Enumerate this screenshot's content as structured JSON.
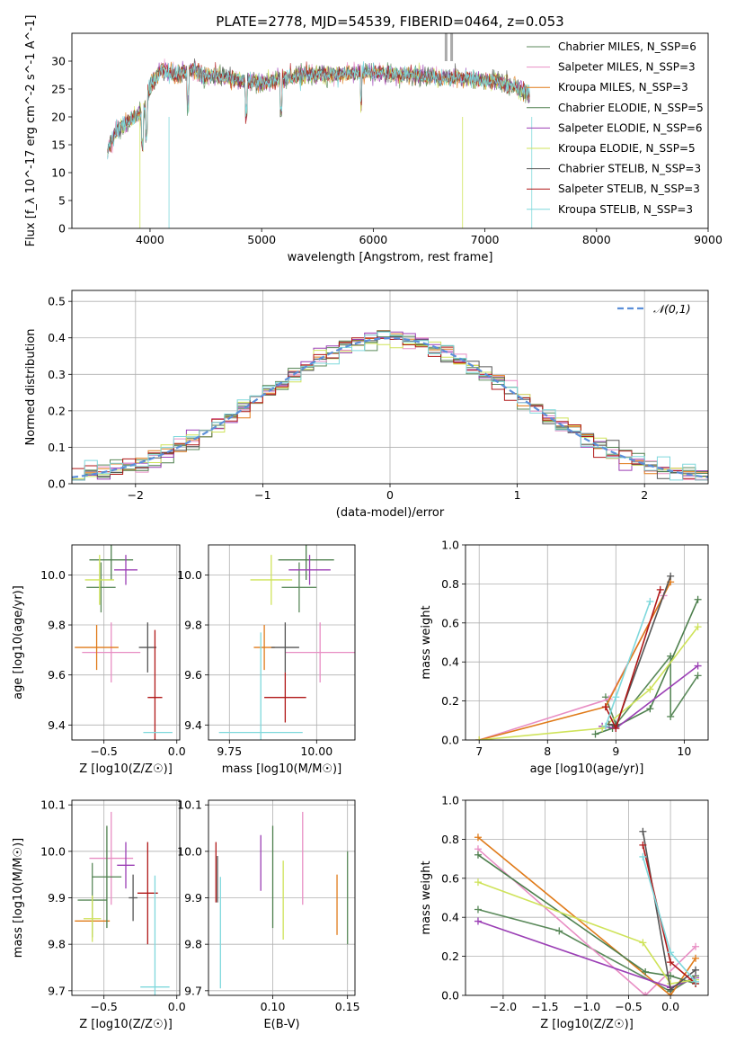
{
  "figure": {
    "title": "PLATE=2778, MJD=54539, FIBERID=0464, z=0.053"
  },
  "series_legend": {
    "names": [
      "Chabrier MILES, N_SSP=6",
      "Salpeter MILES, N_SSP=3",
      "Kroupa MILES, N_SSP=3",
      "Chabrier ELODIE, N_SSP=5",
      "Salpeter ELODIE, N_SSP=6",
      "Kroupa ELODIE, N_SSP=5",
      "Chabrier STELIB, N_SSP=3",
      "Salpeter STELIB, N_SSP=3",
      "Kroupa STELIB, N_SSP=3"
    ],
    "colors": [
      "#5b8a5b",
      "#e88ec4",
      "#e07b1a",
      "#4d7f4d",
      "#9b3fb5",
      "#cfe35a",
      "#555555",
      "#b01818",
      "#7fd8dc"
    ]
  },
  "chart_data": [
    {
      "id": "spectrum",
      "type": "line",
      "xlabel": "wavelength [Angstrom, rest frame]",
      "ylabel": "Flux [f_λ 10^-17 erg cm^-2 s^-1 A^-1]",
      "xlim": [
        3300,
        9000
      ],
      "ylim": [
        0,
        35
      ],
      "xticks": [
        4000,
        5000,
        6000,
        7000,
        8000,
        9000
      ],
      "yticks": [
        0,
        5,
        10,
        15,
        20,
        25,
        30
      ],
      "grid": false,
      "legend_position": "top-right",
      "x": [
        3620,
        3700,
        3800,
        3900,
        3950,
        4000,
        4100,
        4200,
        4300,
        4400,
        4500,
        4600,
        4700,
        4800,
        4900,
        5000,
        5200,
        5400,
        5600,
        5800,
        6000,
        6200,
        6400,
        6600,
        6800,
        7000,
        7200,
        7400
      ],
      "flux": [
        14.0,
        17.5,
        19.0,
        20.5,
        21.5,
        25.5,
        28.5,
        27.5,
        28.0,
        28.5,
        27.0,
        27.5,
        27.0,
        26.5,
        26.5,
        26.0,
        27.0,
        27.5,
        27.5,
        28.0,
        28.0,
        27.5,
        27.5,
        27.0,
        27.0,
        26.5,
        26.0,
        24.0
      ]
    },
    {
      "id": "residuals",
      "type": "histogram",
      "xlabel": "(data-model)/error",
      "ylabel": "Normed distribution",
      "xlim": [
        -2.5,
        2.5
      ],
      "ylim": [
        0,
        0.53
      ],
      "xticks": [
        -2,
        -1,
        0,
        1,
        2
      ],
      "yticks": [
        0.0,
        0.1,
        0.2,
        0.3,
        0.4,
        0.5
      ],
      "grid": true,
      "legend_position": "top-right",
      "legend": [
        "𝒩(0,1)"
      ],
      "bin_width": 0.1
    },
    {
      "id": "age_vs_Z",
      "type": "errorbar",
      "xlabel": "Z [log10(Z/Z☉)]",
      "ylabel": "age [log10(age/yr)]",
      "xlim": [
        -0.72,
        0.02
      ],
      "ylim": [
        9.34,
        10.12
      ],
      "xticks": [
        -0.5,
        0.0
      ],
      "yticks": [
        9.4,
        9.6,
        9.8,
        10.0
      ],
      "grid": true,
      "points": [
        {
          "x": -0.52,
          "xerr": 0.1,
          "y": 9.95,
          "yerr": 0.1,
          "c": 0
        },
        {
          "x": -0.45,
          "xerr": 0.2,
          "y": 9.69,
          "yerr": 0.12,
          "c": 1
        },
        {
          "x": -0.55,
          "xerr": 0.15,
          "y": 9.71,
          "yerr": 0.09,
          "c": 2
        },
        {
          "x": -0.45,
          "xerr": 0.15,
          "y": 10.06,
          "yerr": 0.08,
          "c": 3
        },
        {
          "x": -0.35,
          "xerr": 0.08,
          "y": 10.02,
          "yerr": 0.06,
          "c": 4
        },
        {
          "x": -0.53,
          "xerr": 0.1,
          "y": 9.98,
          "yerr": 0.1,
          "c": 5
        },
        {
          "x": -0.2,
          "xerr": 0.06,
          "y": 9.71,
          "yerr": 0.1,
          "c": 6
        },
        {
          "x": -0.15,
          "xerr": 0.05,
          "y": 9.51,
          "yerr": 0.27,
          "c": 7
        },
        {
          "x": -0.13,
          "xerr": 0.1,
          "y": 9.37,
          "yerr": 0.0,
          "c": 8
        }
      ]
    },
    {
      "id": "age_vs_mass",
      "type": "errorbar",
      "xlabel": "mass [log10(M/M☉)]",
      "ylabel": "",
      "xlim": [
        9.69,
        10.11
      ],
      "ylim": [
        9.34,
        10.12
      ],
      "xticks": [
        9.75,
        10.0
      ],
      "yticks": [
        9.4,
        9.6,
        9.8,
        10.0
      ],
      "grid": true,
      "points": [
        {
          "x": 9.95,
          "xerr": 0.05,
          "y": 9.95,
          "yerr": 0.1,
          "c": 0
        },
        {
          "x": 10.01,
          "xerr": 0.1,
          "y": 9.69,
          "yerr": 0.12,
          "c": 1
        },
        {
          "x": 9.85,
          "xerr": 0.03,
          "y": 9.71,
          "yerr": 0.09,
          "c": 2
        },
        {
          "x": 9.97,
          "xerr": 0.08,
          "y": 10.06,
          "yerr": 0.08,
          "c": 3
        },
        {
          "x": 9.98,
          "xerr": 0.06,
          "y": 10.02,
          "yerr": 0.06,
          "c": 4
        },
        {
          "x": 9.87,
          "xerr": 0.06,
          "y": 9.98,
          "yerr": 0.1,
          "c": 5
        },
        {
          "x": 9.91,
          "xerr": 0.04,
          "y": 9.71,
          "yerr": 0.1,
          "c": 6
        },
        {
          "x": 9.91,
          "xerr": 0.06,
          "y": 9.51,
          "yerr": 0.1,
          "c": 7
        },
        {
          "x": 9.84,
          "xerr": 0.12,
          "y": 9.37,
          "yerr": 0.4,
          "c": 8
        }
      ]
    },
    {
      "id": "massweight_vs_age",
      "type": "line",
      "xlabel": "age [log10(age/yr)]",
      "ylabel": "mass weight",
      "xlim": [
        6.8,
        10.35
      ],
      "ylim": [
        0,
        1.0
      ],
      "xticks": [
        7,
        8,
        9,
        10
      ],
      "yticks": [
        0.0,
        0.2,
        0.4,
        0.6,
        0.8,
        1.0
      ],
      "grid": true,
      "series": [
        {
          "c": 0,
          "x": [
            8.85,
            9.0,
            9.8,
            9.8,
            10.2
          ],
          "y": [
            0.22,
            0.08,
            0.43,
            0.12,
            0.33
          ]
        },
        {
          "c": 1,
          "x": [
            7.0,
            8.9,
            9.7
          ],
          "y": [
            0.0,
            0.21,
            0.74
          ]
        },
        {
          "c": 2,
          "x": [
            7.0,
            8.85,
            9.8
          ],
          "y": [
            0.0,
            0.17,
            0.81
          ]
        },
        {
          "c": 3,
          "x": [
            8.7,
            8.95,
            9.5,
            10.2
          ],
          "y": [
            0.03,
            0.06,
            0.16,
            0.72
          ]
        },
        {
          "c": 4,
          "x": [
            8.8,
            9.0,
            10.2
          ],
          "y": [
            0.07,
            0.06,
            0.38
          ]
        },
        {
          "c": 5,
          "x": [
            7.0,
            8.8,
            9.5,
            10.2
          ],
          "y": [
            0.0,
            0.06,
            0.26,
            0.58
          ]
        },
        {
          "c": 6,
          "x": [
            8.9,
            9.0,
            9.8
          ],
          "y": [
            0.08,
            0.07,
            0.84
          ]
        },
        {
          "c": 7,
          "x": [
            8.85,
            9.0,
            9.65
          ],
          "y": [
            0.17,
            0.06,
            0.77
          ]
        },
        {
          "c": 8,
          "x": [
            8.85,
            9.0,
            9.5
          ],
          "y": [
            0.07,
            0.22,
            0.71
          ]
        }
      ]
    },
    {
      "id": "mass_vs_Z",
      "type": "errorbar",
      "xlabel": "Z [log10(Z/Z☉)]",
      "ylabel": "mass [log10(M/M☉)]",
      "xlim": [
        -0.72,
        0.02
      ],
      "ylim": [
        9.69,
        10.11
      ],
      "xticks": [
        -0.5,
        0.0
      ],
      "yticks": [
        9.7,
        9.8,
        9.9,
        10.0,
        10.1
      ],
      "grid": true,
      "points": [
        {
          "x": -0.58,
          "xerr": 0.1,
          "y": 9.895,
          "yerr": 0.08,
          "c": 0
        },
        {
          "x": -0.45,
          "xerr": 0.15,
          "y": 9.985,
          "yerr": 0.1,
          "c": 1
        },
        {
          "x": -0.58,
          "xerr": 0.12,
          "y": 9.85,
          "yerr": 0.0,
          "c": 2
        },
        {
          "x": -0.48,
          "xerr": 0.1,
          "y": 9.945,
          "yerr": 0.11,
          "c": 3
        },
        {
          "x": -0.35,
          "xerr": 0.06,
          "y": 9.97,
          "yerr": 0.05,
          "c": 4
        },
        {
          "x": -0.58,
          "xerr": 0.06,
          "y": 9.855,
          "yerr": 0.05,
          "c": 5
        },
        {
          "x": -0.3,
          "xerr": 0.03,
          "y": 9.9,
          "yerr": 0.05,
          "c": 6
        },
        {
          "x": -0.2,
          "xerr": 0.07,
          "y": 9.91,
          "yerr": 0.11,
          "c": 7
        },
        {
          "x": -0.15,
          "xerr": 0.1,
          "y": 9.708,
          "yerr": 0.24,
          "c": 8
        }
      ]
    },
    {
      "id": "mass_vs_EBV",
      "type": "errorbar",
      "xlabel": "E(B-V)",
      "ylabel": "",
      "xlim": [
        0.057,
        0.155
      ],
      "ylim": [
        9.69,
        10.11
      ],
      "xticks": [
        0.1,
        0.15
      ],
      "yticks": [
        9.7,
        9.8,
        9.9,
        10.0,
        10.1
      ],
      "grid": true,
      "points": [
        {
          "x": 0.15,
          "y": 9.9,
          "yerr": 0.1,
          "c": 0
        },
        {
          "x": 0.12,
          "y": 9.985,
          "yerr": 0.1,
          "c": 1
        },
        {
          "x": 0.143,
          "y": 9.885,
          "yerr": 0.065,
          "c": 2
        },
        {
          "x": 0.1,
          "y": 9.945,
          "yerr": 0.11,
          "c": 3
        },
        {
          "x": 0.092,
          "y": 9.975,
          "yerr": 0.06,
          "c": 4
        },
        {
          "x": 0.107,
          "y": 9.895,
          "yerr": 0.085,
          "c": 5
        },
        {
          "x": 0.063,
          "y": 9.94,
          "yerr": 0.05,
          "c": 6
        },
        {
          "x": 0.062,
          "y": 9.955,
          "yerr": 0.065,
          "c": 7
        },
        {
          "x": 0.065,
          "y": 9.825,
          "yerr": 0.12,
          "c": 8
        }
      ]
    },
    {
      "id": "massweight_vs_Z",
      "type": "line",
      "xlabel": "Z [log10(Z/Z☉)]",
      "ylabel": "mass weight",
      "xlim": [
        -2.45,
        0.45
      ],
      "ylim": [
        0,
        1.0
      ],
      "xticks": [
        -2.0,
        -1.5,
        -1.0,
        -0.5,
        0.0
      ],
      "yticks": [
        0.0,
        0.2,
        0.4,
        0.6,
        0.8,
        1.0
      ],
      "grid": true,
      "series": [
        {
          "c": 0,
          "x": [
            -2.3,
            -1.33,
            0.0,
            0.3
          ],
          "y": [
            0.44,
            0.33,
            0.02,
            0.1
          ]
        },
        {
          "c": 1,
          "x": [
            -2.3,
            -0.3,
            0.3
          ],
          "y": [
            0.75,
            0.0,
            0.25
          ]
        },
        {
          "c": 2,
          "x": [
            -2.3,
            0.0,
            0.3
          ],
          "y": [
            0.81,
            0.0,
            0.19
          ]
        },
        {
          "c": 3,
          "x": [
            -2.3,
            -0.3,
            0.0,
            0.3
          ],
          "y": [
            0.72,
            0.12,
            0.1,
            0.06
          ]
        },
        {
          "c": 4,
          "x": [
            -2.3,
            0.0,
            0.3
          ],
          "y": [
            0.38,
            0.04,
            0.09
          ]
        },
        {
          "c": 5,
          "x": [
            -2.3,
            -0.33,
            0.0,
            0.3
          ],
          "y": [
            0.58,
            0.27,
            0.06,
            0.08
          ]
        },
        {
          "c": 6,
          "x": [
            -0.33,
            0.0,
            0.3
          ],
          "y": [
            0.84,
            0.03,
            0.13
          ]
        },
        {
          "c": 7,
          "x": [
            -0.33,
            0.0,
            0.3
          ],
          "y": [
            0.77,
            0.17,
            0.06
          ]
        },
        {
          "c": 8,
          "x": [
            -0.33,
            0.0,
            0.3
          ],
          "y": [
            0.71,
            0.22,
            0.07
          ]
        }
      ]
    }
  ]
}
